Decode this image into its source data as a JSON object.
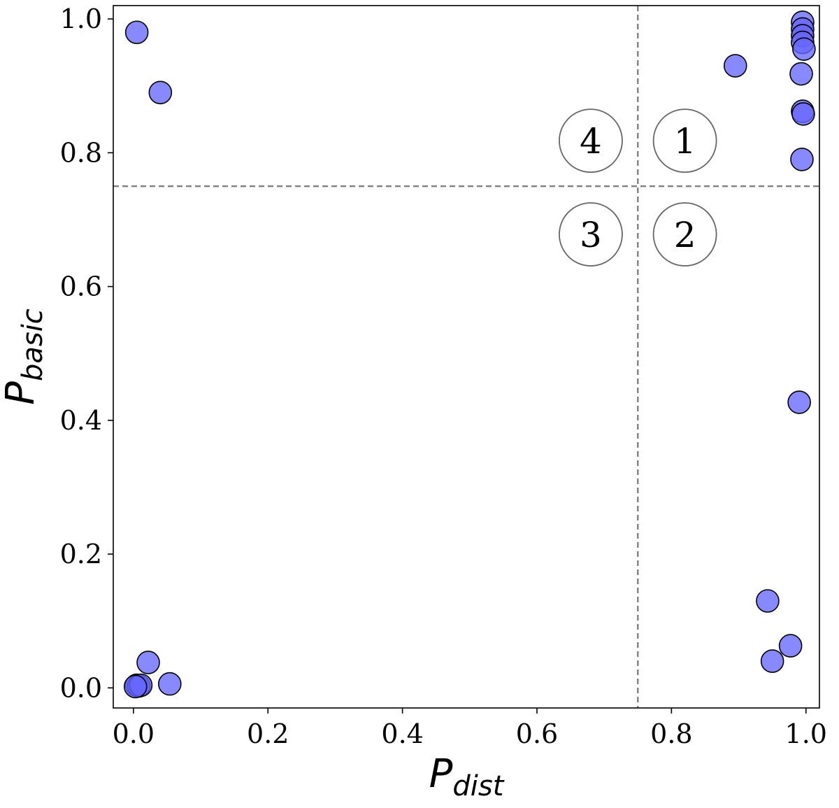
{
  "chart_data": {
    "type": "scatter",
    "title": "",
    "xlabel_main": "P",
    "xlabel_sub": "dist",
    "ylabel_main": "P",
    "ylabel_sub": "basic",
    "xlim": [
      -0.03,
      1.02
    ],
    "ylim": [
      -0.03,
      1.02
    ],
    "xticks": [
      0.0,
      0.2,
      0.4,
      0.6,
      0.8,
      1.0
    ],
    "yticks": [
      0.0,
      0.2,
      0.4,
      0.6,
      0.8,
      1.0
    ],
    "xtick_labels": [
      "0.0",
      "0.2",
      "0.4",
      "0.6",
      "0.8",
      "1.0"
    ],
    "ytick_labels": [
      "0.0",
      "0.2",
      "0.4",
      "0.6",
      "0.8",
      "1.0"
    ],
    "threshold_x": 0.75,
    "threshold_y": 0.75,
    "point_color": "#6666ff",
    "quadrant_labels": [
      {
        "label": "1",
        "x": 0.82,
        "y": 0.818
      },
      {
        "label": "2",
        "x": 0.82,
        "y": 0.678
      },
      {
        "label": "3",
        "x": 0.68,
        "y": 0.678
      },
      {
        "label": "4",
        "x": 0.68,
        "y": 0.818
      }
    ],
    "points": [
      {
        "x": 0.005,
        "y": 0.98
      },
      {
        "x": 0.04,
        "y": 0.89
      },
      {
        "x": 0.895,
        "y": 0.93
      },
      {
        "x": 0.995,
        "y": 0.995
      },
      {
        "x": 0.995,
        "y": 0.985
      },
      {
        "x": 0.995,
        "y": 0.975
      },
      {
        "x": 0.995,
        "y": 0.965
      },
      {
        "x": 0.997,
        "y": 0.955
      },
      {
        "x": 0.993,
        "y": 0.918
      },
      {
        "x": 0.995,
        "y": 0.862
      },
      {
        "x": 0.996,
        "y": 0.858
      },
      {
        "x": 0.994,
        "y": 0.79
      },
      {
        "x": 0.99,
        "y": 0.427
      },
      {
        "x": 0.943,
        "y": 0.13
      },
      {
        "x": 0.977,
        "y": 0.063
      },
      {
        "x": 0.95,
        "y": 0.04
      },
      {
        "x": 0.022,
        "y": 0.038
      },
      {
        "x": 0.054,
        "y": 0.006
      },
      {
        "x": 0.005,
        "y": 0.004
      },
      {
        "x": 0.008,
        "y": 0.003
      },
      {
        "x": 0.011,
        "y": 0.004
      },
      {
        "x": 0.003,
        "y": 0.002
      }
    ]
  }
}
